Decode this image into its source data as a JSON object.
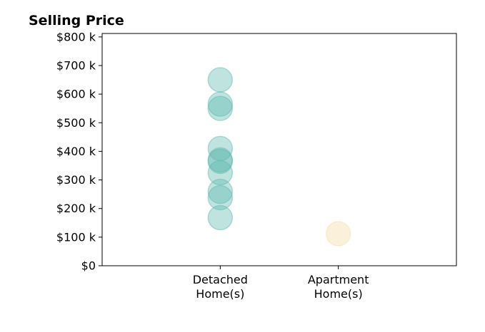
{
  "chart_data": {
    "type": "scatter",
    "title": "Selling Price",
    "xlabel": "",
    "ylabel": "",
    "categories": [
      "Detached\nHome(s)",
      "Apartment\nHome(s)"
    ],
    "y_ticks": [
      {
        "value": 0,
        "label": "$0"
      },
      {
        "value": 100000,
        "label": "$100 k"
      },
      {
        "value": 200000,
        "label": "$200 k"
      },
      {
        "value": 300000,
        "label": "$300 k"
      },
      {
        "value": 400000,
        "label": "$400 k"
      },
      {
        "value": 500000,
        "label": "$500 k"
      },
      {
        "value": 600000,
        "label": "$600 k"
      },
      {
        "value": 700000,
        "label": "$700 k"
      },
      {
        "value": 800000,
        "label": "$800 k"
      }
    ],
    "ylim": [
      0,
      812000
    ],
    "xlim": [
      -1,
      2
    ],
    "grid": false,
    "series": [
      {
        "category_index": 0,
        "color": "#5fb8b0",
        "values": [
          650000,
          565000,
          550000,
          410000,
          370000,
          365000,
          325000,
          260000,
          238000,
          168000
        ]
      },
      {
        "category_index": 1,
        "color": "#f5dda6",
        "values": [
          112000
        ]
      }
    ]
  }
}
